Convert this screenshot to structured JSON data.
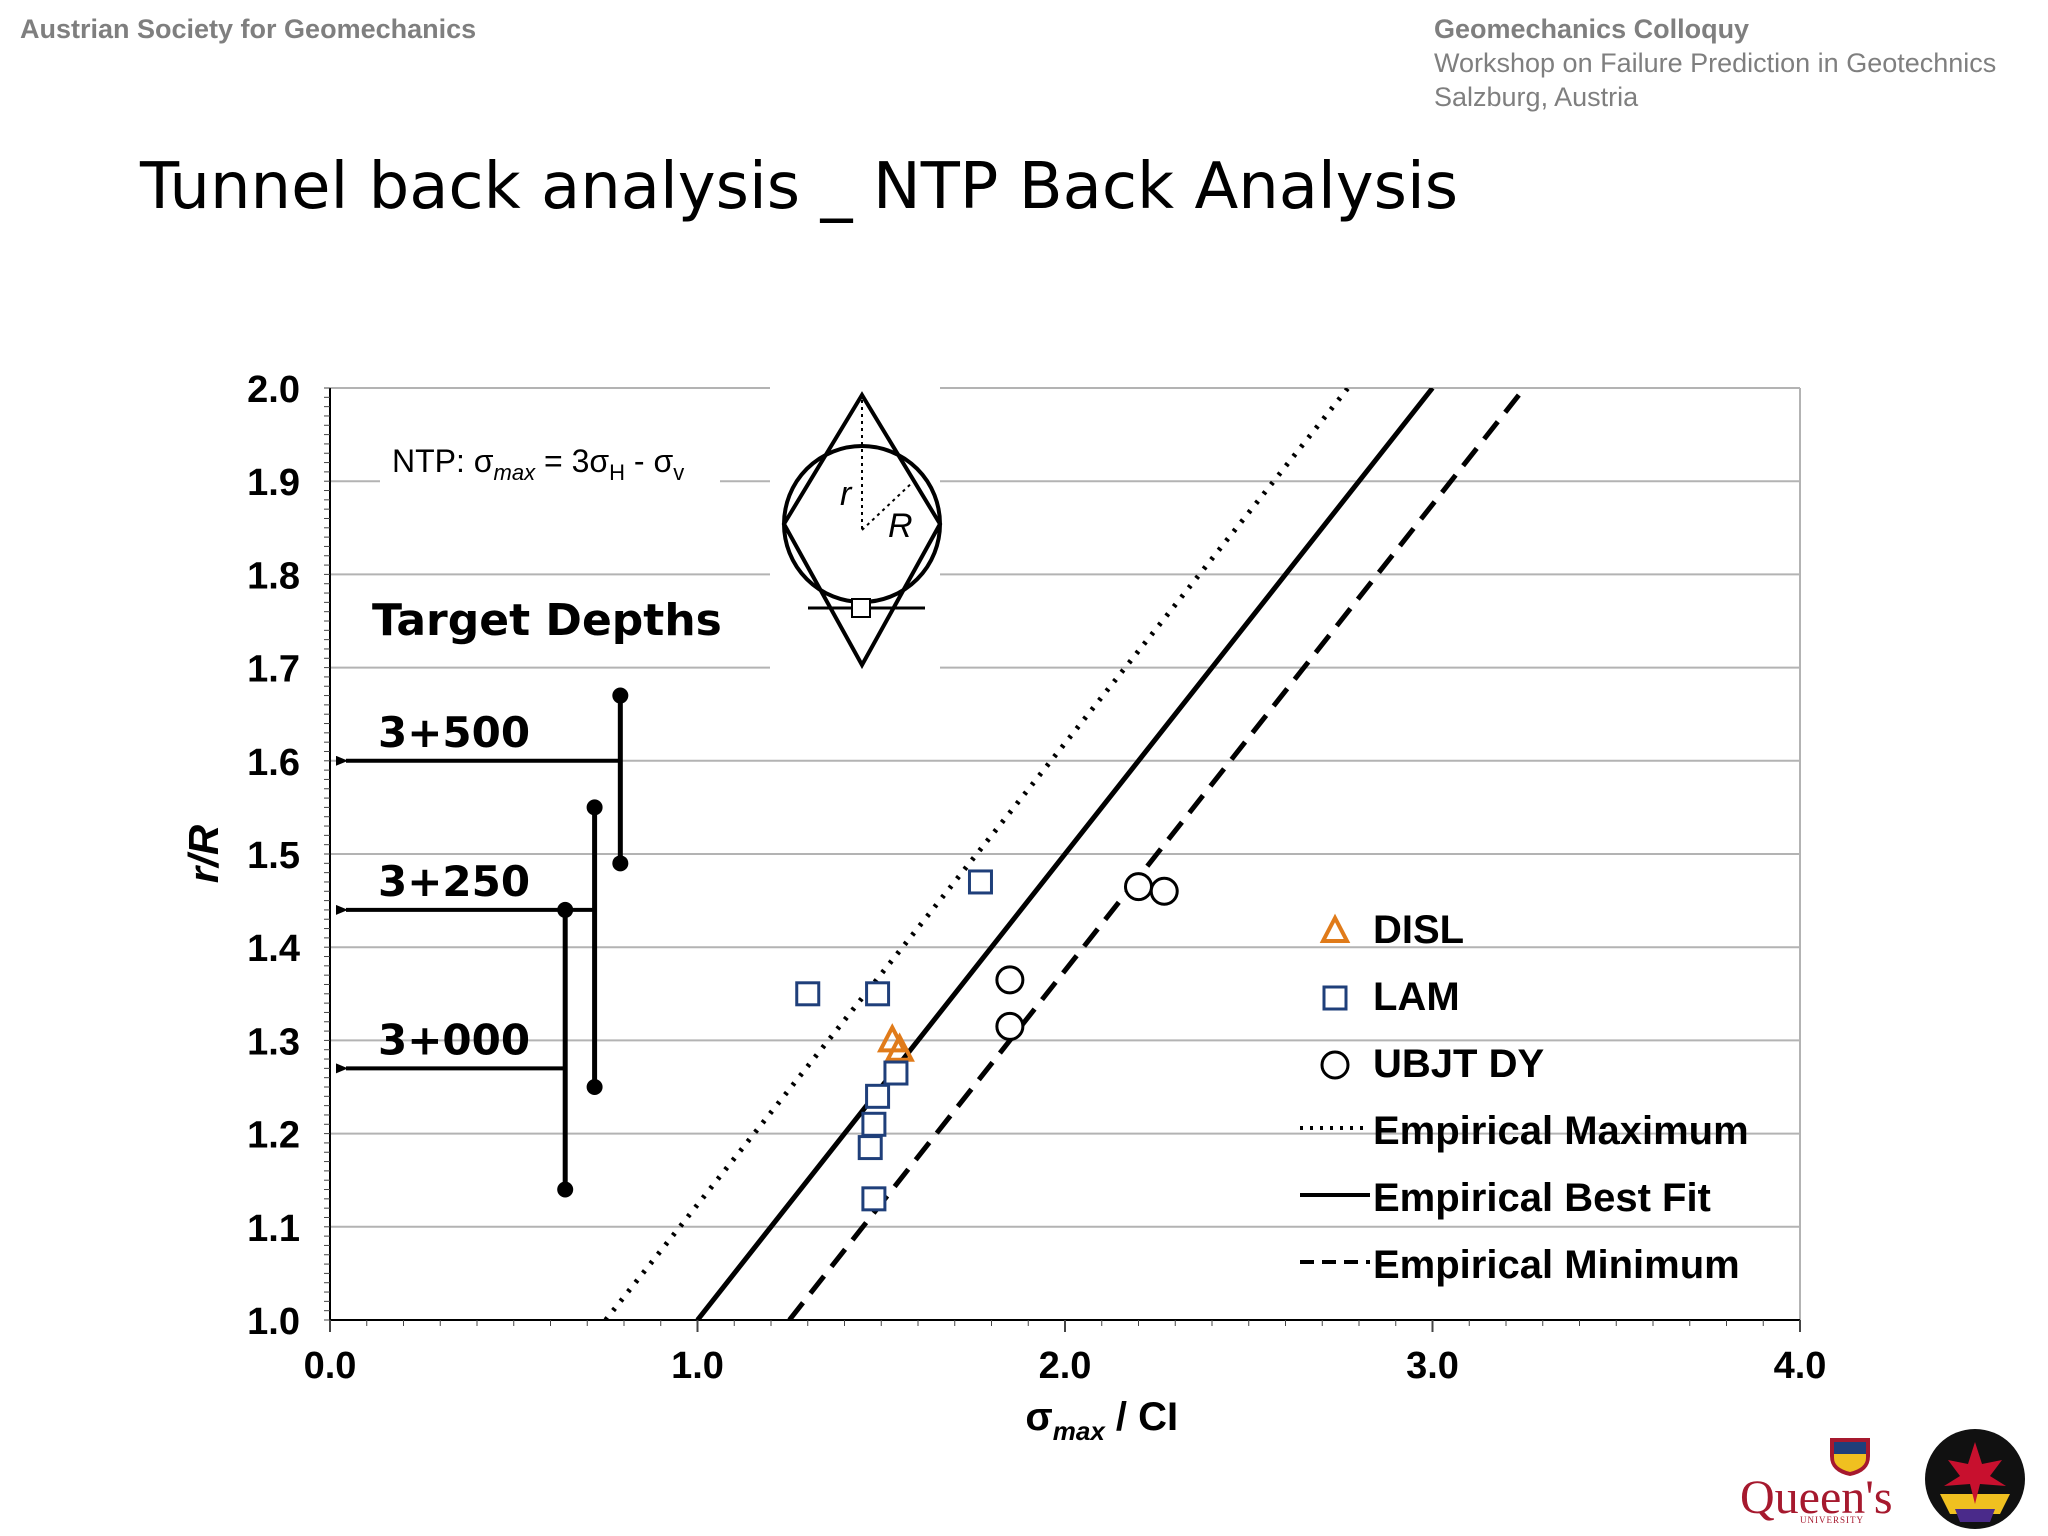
{
  "header": {
    "org": "Austrian Society for Geomechanics",
    "colloquium": "Geomechanics Colloquy",
    "workshop": "Workshop on Failure Prediction in Geotechnics",
    "location": "Salzburg, Austria"
  },
  "slide": {
    "title": "Tunnel back analysis _ NTP Back Analysis"
  },
  "chart_data": {
    "type": "scatter",
    "xlabel": "σmax / CI",
    "ylabel": "r/R",
    "xlim": [
      0,
      4
    ],
    "ylim": [
      1.0,
      2.0
    ],
    "x_ticks": [
      "0.0",
      "1.0",
      "2.0",
      "3.0",
      "4.0"
    ],
    "y_ticks": [
      "1.0",
      "1.1",
      "1.2",
      "1.3",
      "1.4",
      "1.5",
      "1.6",
      "1.7",
      "1.8",
      "1.9",
      "2.0"
    ],
    "grid": "horizontal",
    "legend_position": "bottom-right",
    "formula_text": "NTP: σmax = 3σH - σv",
    "diagram_labels": {
      "r": "r",
      "R": "R"
    },
    "target_depths": {
      "title": "Target Depths",
      "items": [
        {
          "label": "3+500",
          "r_R": 1.6,
          "range": [
            1.49,
            1.67
          ],
          "x": 0.79
        },
        {
          "label": "3+250",
          "r_R": 1.44,
          "range": [
            1.25,
            1.55
          ],
          "x": 0.72
        },
        {
          "label": "3+000",
          "r_R": 1.27,
          "range": [
            1.14,
            1.44
          ],
          "x": 0.64
        }
      ]
    },
    "series": [
      {
        "name": "DISL",
        "marker": "triangle",
        "color": "#e07b1a",
        "points": [
          [
            1.53,
            1.3
          ],
          [
            1.55,
            1.29
          ]
        ]
      },
      {
        "name": "LAM",
        "marker": "square",
        "color": "#1f3f7a",
        "points": [
          [
            1.3,
            1.35
          ],
          [
            1.49,
            1.35
          ],
          [
            1.77,
            1.47
          ],
          [
            1.54,
            1.265
          ],
          [
            1.49,
            1.24
          ],
          [
            1.48,
            1.21
          ],
          [
            1.47,
            1.185
          ],
          [
            1.48,
            1.13
          ]
        ]
      },
      {
        "name": "UBJT DY",
        "marker": "circle",
        "color": "#000000",
        "points": [
          [
            1.85,
            1.365
          ],
          [
            1.85,
            1.315
          ],
          [
            2.2,
            1.465
          ],
          [
            2.27,
            1.46
          ]
        ]
      }
    ],
    "lines": [
      {
        "name": "Empirical Maximum",
        "style": "dotted",
        "points": [
          [
            0.75,
            1.0
          ],
          [
            2.77,
            2.0
          ]
        ]
      },
      {
        "name": "Empirical Best Fit",
        "style": "solid",
        "points": [
          [
            1.0,
            1.0
          ],
          [
            3.0,
            2.0
          ]
        ]
      },
      {
        "name": "Empirical Minimum",
        "style": "dashed",
        "points": [
          [
            1.25,
            1.0
          ],
          [
            3.25,
            2.0
          ]
        ]
      }
    ]
  }
}
